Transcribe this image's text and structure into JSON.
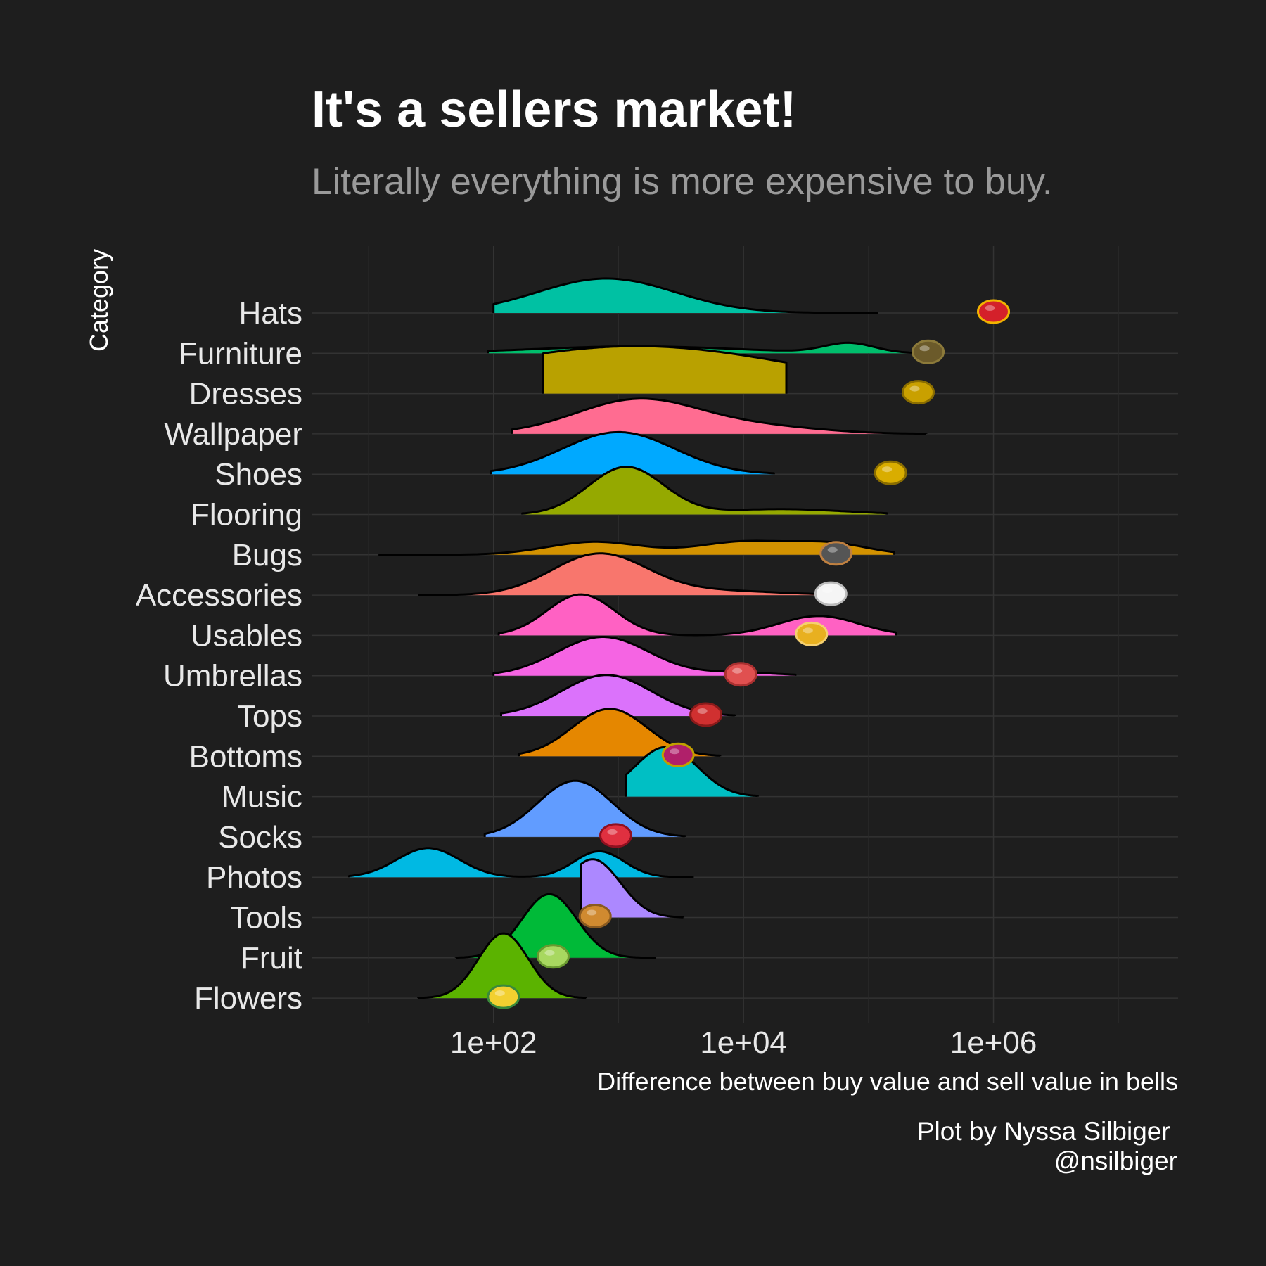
{
  "chart_data": {
    "type": "ridgeline",
    "title": "It's a sellers market!",
    "subtitle": "Literally everything is more expensive to buy.",
    "xlabel": "Difference between buy value and sell value in bells",
    "ylabel": "Category",
    "x_scale": "log10",
    "x_ticks": [
      "1e+02",
      "1e+04",
      "1e+06"
    ],
    "xlim": [
      3.5,
      30000000
    ],
    "grid": true,
    "caption": [
      "Plot by Nyssa Silbiger ",
      "@nsilbiger"
    ],
    "categories": [
      "Hats",
      "Furniture",
      "Dresses",
      "Wallpaper",
      "Shoes",
      "Flooring",
      "Bugs",
      "Accessories",
      "Usables",
      "Umbrellas",
      "Tops",
      "Bottoms",
      "Music",
      "Socks",
      "Photos",
      "Tools",
      "Fruit",
      "Flowers"
    ],
    "series": [
      {
        "category": "Hats",
        "color": "#00C1A3",
        "range": [
          100,
          120000
        ],
        "peaks": [
          [
            800,
            0.55,
            1.6
          ]
        ],
        "icon": "crown-icon",
        "icon_x": 1000000
      },
      {
        "category": "Furniture",
        "color": "#00BE6C",
        "range": [
          90,
          400000
        ],
        "peaks": [
          [
            1400,
            0.82,
            0.32
          ],
          [
            70000,
            0.2,
            0.45
          ]
        ],
        "icon": "table-icon",
        "icon_x": 300000
      },
      {
        "category": "Dresses",
        "color": "#B9A100",
        "range": [
          250,
          22000
        ],
        "peaks": [
          [
            1400,
            1.3,
            2.2
          ]
        ],
        "icon": "golden-armor-icon",
        "icon_x": 250000
      },
      {
        "category": "Wallpaper",
        "color": "#FF6C91",
        "range": [
          140,
          290000
        ],
        "peaks": [
          [
            1450,
            0.5,
            1.6
          ],
          [
            15000,
            0.48,
            0.3
          ]
        ],
        "icon": "none",
        "icon_x": 0
      },
      {
        "category": "Shoes",
        "color": "#00A9FF",
        "range": [
          95,
          17500
        ],
        "peaks": [
          [
            1000,
            0.45,
            1.95
          ]
        ],
        "icon": "golden-boots-icon",
        "icon_x": 150000
      },
      {
        "category": "Flooring",
        "color": "#95A900",
        "range": [
          170,
          140000
        ],
        "peaks": [
          [
            1150,
            0.3,
            2.2
          ],
          [
            20000,
            0.5,
            0.25
          ]
        ],
        "icon": "none",
        "icon_x": 0
      },
      {
        "category": "Bugs",
        "color": "#D39200",
        "range": [
          12,
          160000
        ],
        "peaks": [
          [
            650,
            0.38,
            0.6
          ],
          [
            10000,
            0.36,
            0.6
          ],
          [
            50000,
            0.3,
            0.5
          ]
        ],
        "icon": "bug-cage-icon",
        "icon_x": 55000
      },
      {
        "category": "Accessories",
        "color": "#F8766D",
        "range": [
          25,
          55000
        ],
        "peaks": [
          [
            700,
            0.38,
            1.9
          ],
          [
            6000,
            0.5,
            0.2
          ]
        ],
        "icon": "shell-necklace-icon",
        "icon_x": 50000
      },
      {
        "category": "Usables",
        "color": "#FF61C3",
        "range": [
          110,
          165000
        ],
        "peaks": [
          [
            500,
            0.27,
            1.9
          ],
          [
            40000,
            0.32,
            0.9
          ]
        ],
        "icon": "golden-rod-icon",
        "icon_x": 35000
      },
      {
        "category": "Umbrellas",
        "color": "#F564E3",
        "range": [
          100,
          26000
        ],
        "peaks": [
          [
            750,
            0.37,
            1.8
          ],
          [
            9000,
            0.3,
            0.15
          ]
        ],
        "icon": "umbrella-icon",
        "icon_x": 9500
      },
      {
        "category": "Tops",
        "color": "#DB72FB",
        "range": [
          115,
          8500
        ],
        "peaks": [
          [
            800,
            0.36,
            1.9
          ]
        ],
        "icon": "red-jacket-icon",
        "icon_x": 5000
      },
      {
        "category": "Bottoms",
        "color": "#E58700",
        "range": [
          160,
          6500
        ],
        "peaks": [
          [
            850,
            0.3,
            2.2
          ]
        ],
        "icon": "purple-shorts-icon",
        "icon_x": 3000
      },
      {
        "category": "Music",
        "color": "#00BFC4",
        "range": [
          1150,
          13000
        ],
        "peaks": [
          [
            2400,
            0.25,
            2.3
          ]
        ],
        "icon": "none",
        "icon_x": 0
      },
      {
        "category": "Socks",
        "color": "#619CFF",
        "range": [
          85,
          3400
        ],
        "peaks": [
          [
            450,
            0.3,
            2.6
          ]
        ],
        "icon": "red-sock-icon",
        "icon_x": 950
      },
      {
        "category": "Photos",
        "color": "#00B9E3",
        "range": [
          7,
          4000
        ],
        "peaks": [
          [
            30,
            0.25,
            1.35
          ],
          [
            700,
            0.2,
            1.2
          ]
        ],
        "icon": "none",
        "icon_x": 0
      },
      {
        "category": "Tools",
        "color": "#AC88FF",
        "range": [
          500,
          3300
        ],
        "peaks": [
          [
            620,
            0.22,
            2.7
          ]
        ],
        "icon": "slingshot-icon",
        "icon_x": 650
      },
      {
        "category": "Fruit",
        "color": "#00BA38",
        "range": [
          50,
          2000
        ],
        "peaks": [
          [
            280,
            0.22,
            2.95
          ]
        ],
        "icon": "apple-icon",
        "icon_x": 300
      },
      {
        "category": "Flowers",
        "color": "#5BB300",
        "range": [
          25,
          550
        ],
        "peaks": [
          [
            120,
            0.2,
            3.0
          ]
        ],
        "icon": "rose-icon",
        "icon_x": 120
      }
    ]
  }
}
